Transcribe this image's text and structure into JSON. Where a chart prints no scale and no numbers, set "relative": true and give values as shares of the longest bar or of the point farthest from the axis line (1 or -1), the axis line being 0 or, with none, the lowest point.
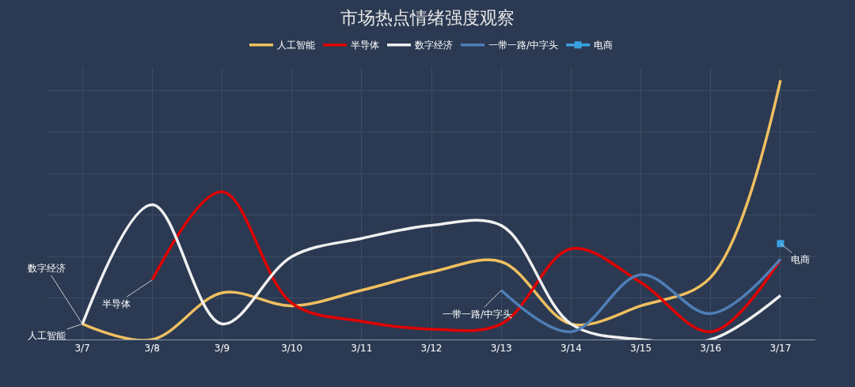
{
  "chart_data": {
    "type": "line",
    "title": "市场热点情绪强度观察",
    "relative": true,
    "categories": [
      "3/7",
      "3/8",
      "3/9",
      "3/10",
      "3/11",
      "3/12",
      "3/13",
      "3/14",
      "3/15",
      "3/16",
      "3/17"
    ],
    "series": [
      {
        "name": "人工智能",
        "color": "#f0c060",
        "values": [
          0.06,
          0,
          0.18,
          0.13,
          0.19,
          0.26,
          0.3,
          0.06,
          0.13,
          0.24,
          1
        ]
      },
      {
        "name": "半导体",
        "color": "#e00000",
        "values": [
          null,
          0.23,
          0.57,
          0.14,
          0.07,
          0.04,
          0.06,
          0.35,
          0.22,
          0.03,
          0.31
        ]
      },
      {
        "name": "数字经济",
        "color": "#f0f0f0",
        "values": [
          0.06,
          0.52,
          0.06,
          0.32,
          0.39,
          0.44,
          0.44,
          0.06,
          0,
          0,
          0.17
        ]
      },
      {
        "name": "一带一路/中字头",
        "color": "#4f7fb8",
        "values": [
          null,
          null,
          null,
          null,
          null,
          null,
          0.19,
          0.03,
          0.25,
          0.1,
          0.31
        ]
      },
      {
        "name": "电商",
        "color": "#3aa0e0",
        "marker": "square",
        "values": [
          null,
          null,
          null,
          null,
          null,
          null,
          null,
          null,
          null,
          null,
          0.37
        ]
      }
    ],
    "annotations": [
      {
        "text": "人工智能",
        "x": "3/7",
        "y": 0.06
      },
      {
        "text": "数字经济",
        "x": "3/7",
        "y": 0.06
      },
      {
        "text": "半导体",
        "x": "3/8",
        "y": 0.23
      },
      {
        "text": "一带一路/中字头",
        "x": "3/13",
        "y": 0.19
      },
      {
        "text": "电商",
        "x": "3/17",
        "y": 0.37
      }
    ],
    "marker": "none",
    "grid": true,
    "legend": "top"
  }
}
